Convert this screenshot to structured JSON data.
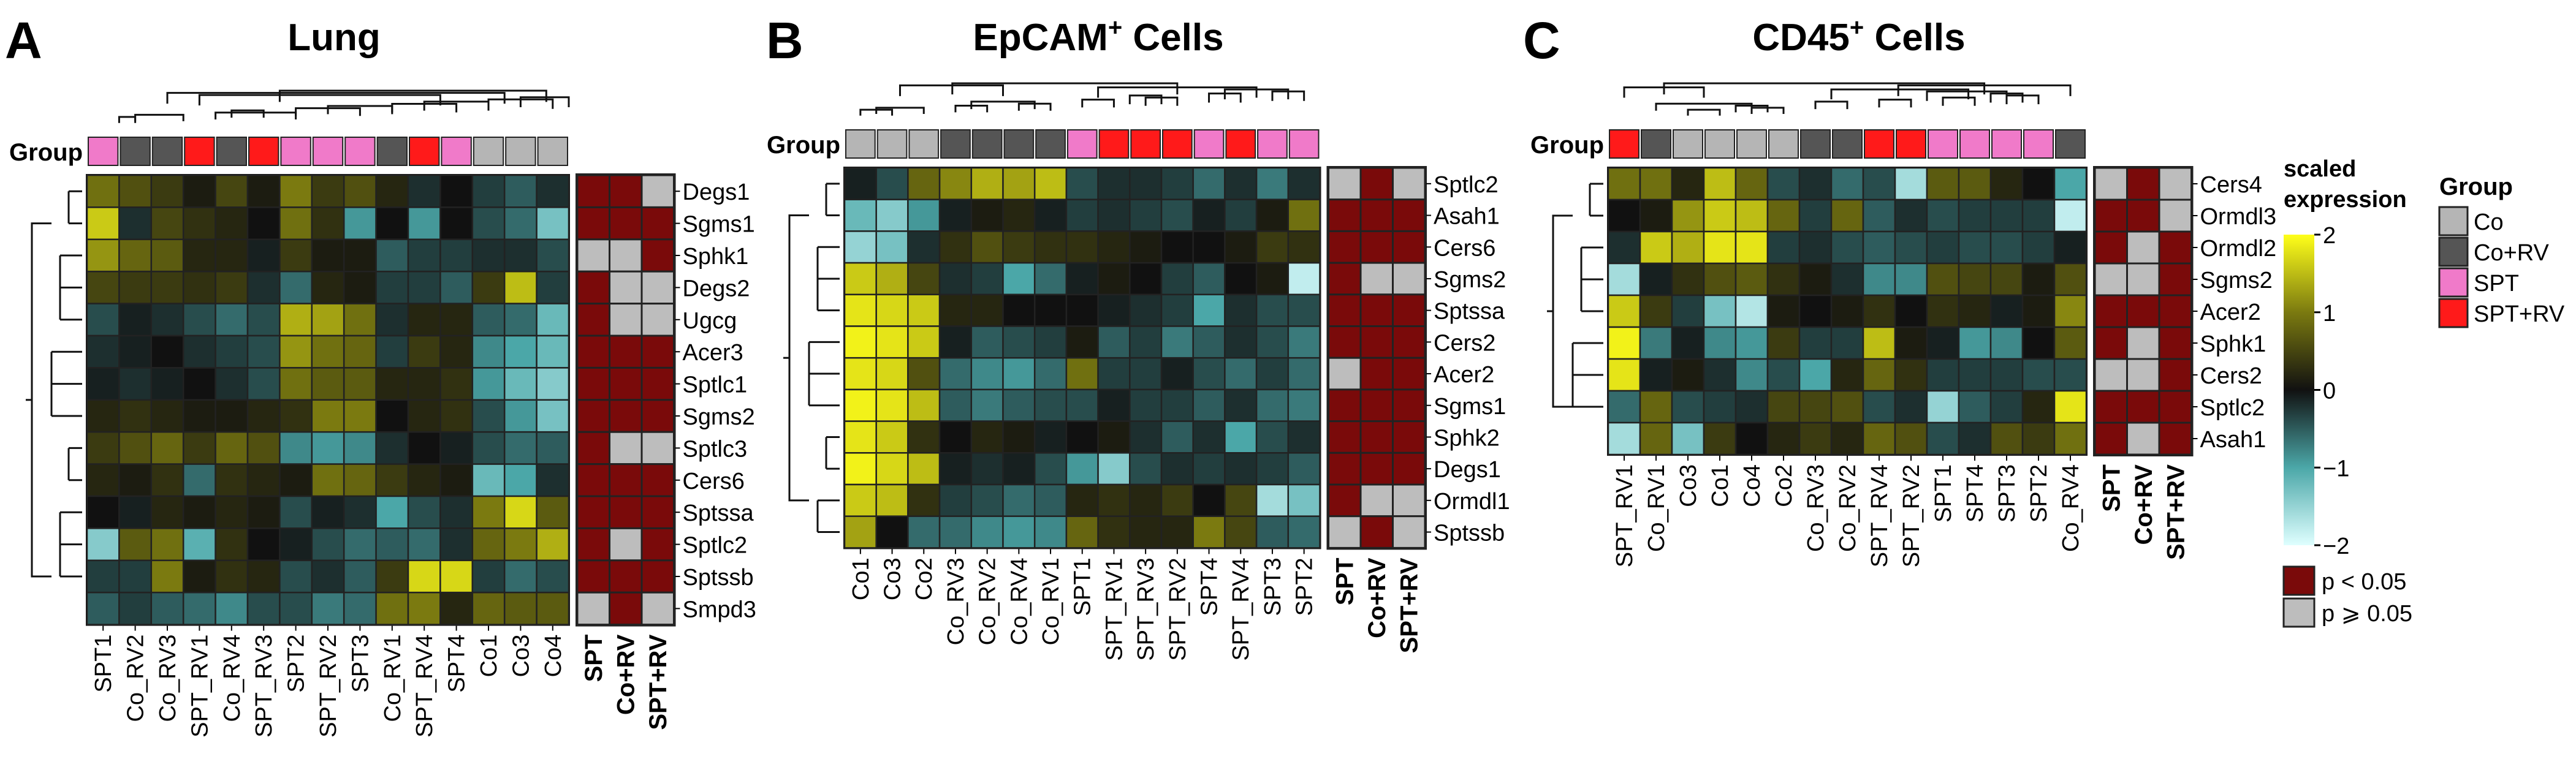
{
  "figure": {
    "colors": {
      "sig": "#7a0a0a",
      "nonsig": "#bdbdbd",
      "Co": "#b5b5b5",
      "Co+RV": "#555555",
      "SPT": "#f07ac9",
      "SPT+RV": "#ff1a1a"
    },
    "colorscale": {
      "stops": [
        [
          -2,
          "#dfffff"
        ],
        [
          -1,
          "#4ba7a8"
        ],
        [
          0,
          "#111111"
        ],
        [
          1,
          "#7b7a10"
        ],
        [
          2,
          "#ffff1a"
        ]
      ]
    },
    "group_row_label": "Group",
    "test_columns": [
      "SPT",
      "Co+RV",
      "SPT+RV"
    ],
    "legend": {
      "scale_title_1": "scaled",
      "scale_title_2": "expression",
      "scale_ticks": [
        "2",
        "1",
        "0",
        "−1",
        "−2"
      ],
      "scale_tick_values": [
        2,
        1,
        0,
        -1,
        -2
      ],
      "group_title": "Group",
      "group_items": [
        "Co",
        "Co+RV",
        "SPT",
        "SPT+RV"
      ],
      "sig_items": [
        "p < 0.05",
        "p ⩾ 0.05"
      ]
    }
  },
  "chart_data": [
    {
      "type": "heatmap",
      "panel": "A",
      "title": "Lung",
      "title_sup": "",
      "samples": [
        "SPT1",
        "Co_RV2",
        "Co_RV3",
        "SPT_RV1",
        "Co_RV4",
        "SPT_RV3",
        "SPT2",
        "SPT_RV2",
        "SPT3",
        "Co_RV1",
        "SPT_RV4",
        "SPT4",
        "Co1",
        "Co3",
        "Co4"
      ],
      "sample_groups": [
        "SPT",
        "Co+RV",
        "Co+RV",
        "SPT+RV",
        "Co+RV",
        "SPT+RV",
        "SPT",
        "SPT",
        "SPT",
        "Co+RV",
        "SPT+RV",
        "SPT",
        "Co",
        "Co",
        "Co"
      ],
      "genes": [
        "Degs1",
        "Sgms1",
        "Sphk1",
        "Degs2",
        "Ugcg",
        "Acer3",
        "Sptlc1",
        "Sgms2",
        "Sptlc3",
        "Cers6",
        "Sptssa",
        "Sptlc2",
        "Sptssb",
        "Smpd3"
      ],
      "values": [
        [
          0.9,
          0.6,
          0.4,
          0.1,
          0.5,
          0.1,
          1.0,
          0.4,
          0.6,
          0.2,
          -0.2,
          0.0,
          -0.3,
          -0.5,
          -0.2
        ],
        [
          1.6,
          -0.2,
          0.5,
          0.3,
          0.2,
          0.0,
          0.9,
          0.3,
          -0.9,
          0.0,
          -0.9,
          0.0,
          -0.4,
          -0.6,
          -1.3
        ],
        [
          1.2,
          0.8,
          0.7,
          0.2,
          0.2,
          -0.1,
          0.4,
          0.1,
          0.1,
          -0.5,
          -0.3,
          -0.3,
          -0.2,
          -0.2,
          -0.4
        ],
        [
          0.5,
          0.4,
          0.4,
          0.3,
          0.4,
          -0.2,
          -0.6,
          0.2,
          0.1,
          -0.3,
          -0.3,
          -0.5,
          0.4,
          1.5,
          -0.3
        ],
        [
          -0.4,
          -0.1,
          -0.2,
          -0.4,
          -0.6,
          -0.4,
          1.4,
          1.3,
          0.9,
          -0.2,
          0.2,
          0.2,
          -0.5,
          -0.6,
          -1.2
        ],
        [
          -0.2,
          -0.1,
          0.0,
          -0.2,
          -0.3,
          -0.4,
          1.2,
          0.9,
          0.8,
          -0.3,
          0.4,
          0.2,
          -0.8,
          -1.0,
          -1.2
        ],
        [
          -0.1,
          -0.2,
          -0.1,
          0.0,
          -0.2,
          -0.4,
          0.9,
          0.7,
          0.7,
          0.2,
          0.2,
          0.3,
          -0.9,
          -1.2,
          -1.4
        ],
        [
          0.2,
          0.3,
          0.2,
          0.1,
          0.1,
          0.2,
          0.3,
          1.0,
          1.0,
          0.0,
          0.2,
          0.3,
          -0.4,
          -0.9,
          -1.3
        ],
        [
          0.4,
          0.6,
          0.8,
          0.4,
          0.8,
          0.6,
          -0.8,
          -0.9,
          -0.8,
          -0.2,
          0.0,
          -0.1,
          -0.4,
          -0.6,
          -0.5
        ],
        [
          0.2,
          0.1,
          0.3,
          -0.6,
          0.3,
          0.2,
          0.1,
          0.9,
          0.8,
          0.4,
          0.2,
          0.1,
          -1.2,
          -1.0,
          -0.2
        ],
        [
          0.0,
          -0.1,
          0.2,
          0.1,
          0.2,
          0.1,
          -0.4,
          -0.1,
          -0.2,
          -1.0,
          -0.4,
          -0.2,
          1.0,
          1.7,
          0.7
        ],
        [
          -1.4,
          0.7,
          0.9,
          -1.1,
          0.3,
          0.0,
          -0.1,
          -0.4,
          -0.6,
          -0.5,
          -0.6,
          -0.2,
          0.8,
          1.0,
          1.4
        ],
        [
          -0.3,
          -0.3,
          1.0,
          0.1,
          0.3,
          0.2,
          -0.4,
          -0.2,
          -0.5,
          0.4,
          1.7,
          1.7,
          -0.3,
          -0.6,
          -0.4
        ],
        [
          -0.5,
          -0.3,
          -0.5,
          -0.6,
          -0.8,
          -0.4,
          -0.4,
          -0.7,
          -0.6,
          0.9,
          1.0,
          0.2,
          0.8,
          0.7,
          0.7
        ]
      ],
      "significance": [
        [
          "s",
          "s",
          "n"
        ],
        [
          "s",
          "s",
          "s"
        ],
        [
          "n",
          "n",
          "s"
        ],
        [
          "s",
          "n",
          "n"
        ],
        [
          "s",
          "n",
          "n"
        ],
        [
          "s",
          "s",
          "s"
        ],
        [
          "s",
          "s",
          "s"
        ],
        [
          "s",
          "s",
          "s"
        ],
        [
          "s",
          "n",
          "n"
        ],
        [
          "s",
          "s",
          "s"
        ],
        [
          "s",
          "s",
          "s"
        ],
        [
          "s",
          "n",
          "s"
        ],
        [
          "s",
          "s",
          "s"
        ],
        [
          "n",
          "s",
          "n"
        ]
      ]
    },
    {
      "type": "heatmap",
      "panel": "B",
      "title": "EpCAM",
      "title_sup": "+",
      "title_tail": " Cells",
      "samples": [
        "Co1",
        "Co3",
        "Co2",
        "Co_RV3",
        "Co_RV2",
        "Co_RV4",
        "Co_RV1",
        "SPT1",
        "SPT_RV1",
        "SPT_RV3",
        "SPT_RV2",
        "SPT4",
        "SPT_RV4",
        "SPT3",
        "SPT2"
      ],
      "sample_groups": [
        "Co",
        "Co",
        "Co",
        "Co+RV",
        "Co+RV",
        "Co+RV",
        "Co+RV",
        "SPT",
        "SPT+RV",
        "SPT+RV",
        "SPT+RV",
        "SPT",
        "SPT+RV",
        "SPT",
        "SPT"
      ],
      "genes": [
        "Sptlc2",
        "Asah1",
        "Cers6",
        "Sgms2",
        "Sptssa",
        "Cers2",
        "Acer2",
        "Sgms1",
        "Sphk2",
        "Degs1",
        "Ormdl1",
        "Sptssb"
      ],
      "values": [
        [
          -0.1,
          -0.4,
          0.8,
          1.1,
          1.4,
          1.3,
          1.5,
          -0.4,
          -0.2,
          -0.2,
          -0.3,
          -0.6,
          -0.2,
          -0.7,
          -0.2
        ],
        [
          -1.2,
          -1.4,
          -0.9,
          -0.1,
          0.1,
          0.2,
          -0.1,
          -0.3,
          -0.2,
          -0.3,
          -0.4,
          -0.1,
          -0.3,
          0.1,
          0.9
        ],
        [
          -1.5,
          -1.3,
          -0.2,
          0.3,
          0.6,
          0.4,
          0.3,
          0.3,
          0.2,
          0.1,
          0.0,
          0.0,
          0.1,
          0.4,
          0.3
        ],
        [
          1.6,
          1.4,
          0.5,
          -0.2,
          -0.3,
          -1.0,
          -0.6,
          -0.1,
          0.1,
          0.0,
          -0.3,
          -0.5,
          0.0,
          0.1,
          -1.8
        ],
        [
          1.8,
          1.7,
          1.6,
          0.2,
          0.2,
          0.0,
          0.0,
          0.0,
          -0.1,
          -0.2,
          -0.3,
          -1.0,
          -0.2,
          -0.4,
          -0.4
        ],
        [
          1.9,
          1.8,
          1.6,
          -0.1,
          -0.5,
          -0.4,
          -0.3,
          0.1,
          -0.5,
          -0.3,
          -0.7,
          -0.5,
          -0.2,
          -0.4,
          -0.7
        ],
        [
          1.8,
          1.7,
          0.6,
          -0.6,
          -0.8,
          -0.9,
          -0.6,
          0.9,
          -0.3,
          -0.3,
          -0.1,
          -0.4,
          -0.6,
          -0.3,
          -0.6
        ],
        [
          1.9,
          1.8,
          1.5,
          -0.5,
          -0.7,
          -0.5,
          -0.4,
          -0.4,
          -0.1,
          -0.3,
          -0.3,
          -0.5,
          -0.2,
          -0.6,
          -0.7
        ],
        [
          1.8,
          1.6,
          0.3,
          0.0,
          0.2,
          0.1,
          -0.1,
          0.0,
          0.1,
          -0.2,
          -0.5,
          -0.2,
          -1.0,
          -0.4,
          -0.2
        ],
        [
          1.9,
          1.7,
          1.5,
          -0.1,
          -0.2,
          -0.1,
          -0.4,
          -0.9,
          -1.4,
          -0.4,
          -0.2,
          -0.3,
          -0.2,
          -0.3,
          -0.5
        ],
        [
          1.6,
          1.5,
          0.3,
          -0.3,
          -0.4,
          -0.6,
          -0.5,
          0.2,
          0.3,
          0.2,
          0.4,
          0.0,
          0.5,
          -1.6,
          -1.3
        ],
        [
          1.3,
          0.0,
          -0.6,
          -0.6,
          -0.8,
          -0.9,
          -0.8,
          0.8,
          0.3,
          0.2,
          0.2,
          1.0,
          0.5,
          -0.5,
          -0.6
        ]
      ],
      "significance": [
        [
          "n",
          "s",
          "n"
        ],
        [
          "s",
          "s",
          "s"
        ],
        [
          "s",
          "s",
          "s"
        ],
        [
          "s",
          "n",
          "n"
        ],
        [
          "s",
          "s",
          "s"
        ],
        [
          "s",
          "s",
          "s"
        ],
        [
          "n",
          "s",
          "s"
        ],
        [
          "s",
          "s",
          "s"
        ],
        [
          "s",
          "s",
          "s"
        ],
        [
          "s",
          "s",
          "s"
        ],
        [
          "s",
          "n",
          "n"
        ],
        [
          "n",
          "s",
          "n"
        ]
      ]
    },
    {
      "type": "heatmap",
      "panel": "C",
      "title": "CD45",
      "title_sup": "+",
      "title_tail": " Cells",
      "samples": [
        "SPT_RV1",
        "Co_RV1",
        "Co3",
        "Co1",
        "Co4",
        "Co2",
        "Co_RV3",
        "Co_RV2",
        "SPT_RV4",
        "SPT_RV2",
        "SPT1",
        "SPT4",
        "SPT3",
        "SPT2",
        "Co_RV4"
      ],
      "sample_groups": [
        "SPT+RV",
        "Co+RV",
        "Co",
        "Co",
        "Co",
        "Co",
        "Co+RV",
        "Co+RV",
        "SPT+RV",
        "SPT+RV",
        "SPT",
        "SPT",
        "SPT",
        "SPT",
        "Co+RV"
      ],
      "genes": [
        "Cers4",
        "Ormdl3",
        "Ormdl2",
        "Sgms2",
        "Acer2",
        "Sphk1",
        "Cers2",
        "Sptlc2",
        "Asah1"
      ],
      "values": [
        [
          0.9,
          0.9,
          0.2,
          1.5,
          0.8,
          -0.4,
          -0.2,
          -0.6,
          -0.4,
          -1.6,
          0.7,
          0.7,
          0.2,
          0.0,
          -1.0
        ],
        [
          0.0,
          0.1,
          1.2,
          1.6,
          1.5,
          0.8,
          -0.3,
          0.8,
          -0.5,
          -0.2,
          -0.4,
          -0.3,
          -0.3,
          -0.3,
          -1.8
        ],
        [
          -0.2,
          1.6,
          1.4,
          1.8,
          1.8,
          -0.3,
          -0.2,
          -0.4,
          -0.5,
          -0.4,
          -0.3,
          -0.4,
          -0.4,
          -0.3,
          -0.1
        ],
        [
          -1.6,
          -0.1,
          0.3,
          0.6,
          0.7,
          0.3,
          0.1,
          -0.2,
          -0.8,
          -0.8,
          0.6,
          0.5,
          0.5,
          0.1,
          0.6
        ],
        [
          1.6,
          0.4,
          -0.3,
          -1.3,
          -1.7,
          0.1,
          0.0,
          0.1,
          0.3,
          0.0,
          0.3,
          0.2,
          -0.1,
          0.1,
          1.1
        ],
        [
          1.9,
          -0.7,
          -0.1,
          -0.8,
          -0.9,
          0.4,
          -0.3,
          -0.3,
          1.5,
          0.1,
          -0.1,
          -0.9,
          -0.8,
          0.0,
          0.7
        ],
        [
          1.8,
          -0.1,
          0.1,
          -0.2,
          -0.8,
          -0.4,
          -1.0,
          0.2,
          0.8,
          0.3,
          -0.3,
          -0.3,
          -0.3,
          -0.4,
          -0.4
        ],
        [
          -0.6,
          0.8,
          -0.4,
          -0.3,
          -0.2,
          0.5,
          0.5,
          0.6,
          -0.4,
          -0.2,
          -1.5,
          -0.5,
          -0.3,
          0.2,
          1.8
        ],
        [
          -1.6,
          0.8,
          -1.3,
          0.4,
          0.0,
          0.2,
          0.4,
          0.2,
          0.8,
          0.6,
          -0.4,
          -0.2,
          0.6,
          0.4,
          0.9
        ]
      ],
      "significance": [
        [
          "n",
          "s",
          "n"
        ],
        [
          "s",
          "s",
          "n"
        ],
        [
          "s",
          "n",
          "s"
        ],
        [
          "n",
          "n",
          "s"
        ],
        [
          "s",
          "s",
          "s"
        ],
        [
          "s",
          "n",
          "s"
        ],
        [
          "n",
          "n",
          "s"
        ],
        [
          "s",
          "s",
          "s"
        ],
        [
          "s",
          "n",
          "s"
        ]
      ]
    }
  ]
}
